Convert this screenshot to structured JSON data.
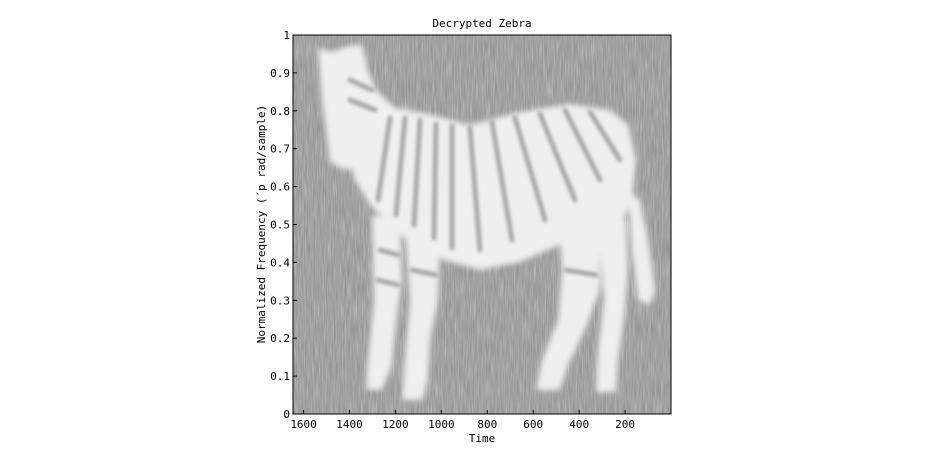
{
  "chart_data": {
    "type": "heatmap",
    "title": "Decrypted Zebra",
    "xlabel": "Time",
    "ylabel": "Normalized Frequency  (´p rad/sample)",
    "x_reversed": true,
    "xlim": [
      1646,
      0
    ],
    "ylim": [
      0,
      1
    ],
    "x_ticks": [
      1600,
      1400,
      1200,
      1000,
      800,
      600,
      400,
      200
    ],
    "y_ticks": [
      "0",
      "0.1",
      "0.2",
      "0.3",
      "0.4",
      "0.5",
      "0.6",
      "0.7",
      "0.8",
      "0.9",
      "1"
    ],
    "image_content": "spectrogram whose bright regions form a zebra figure on a grey noise background",
    "colormap": "grayscale"
  }
}
